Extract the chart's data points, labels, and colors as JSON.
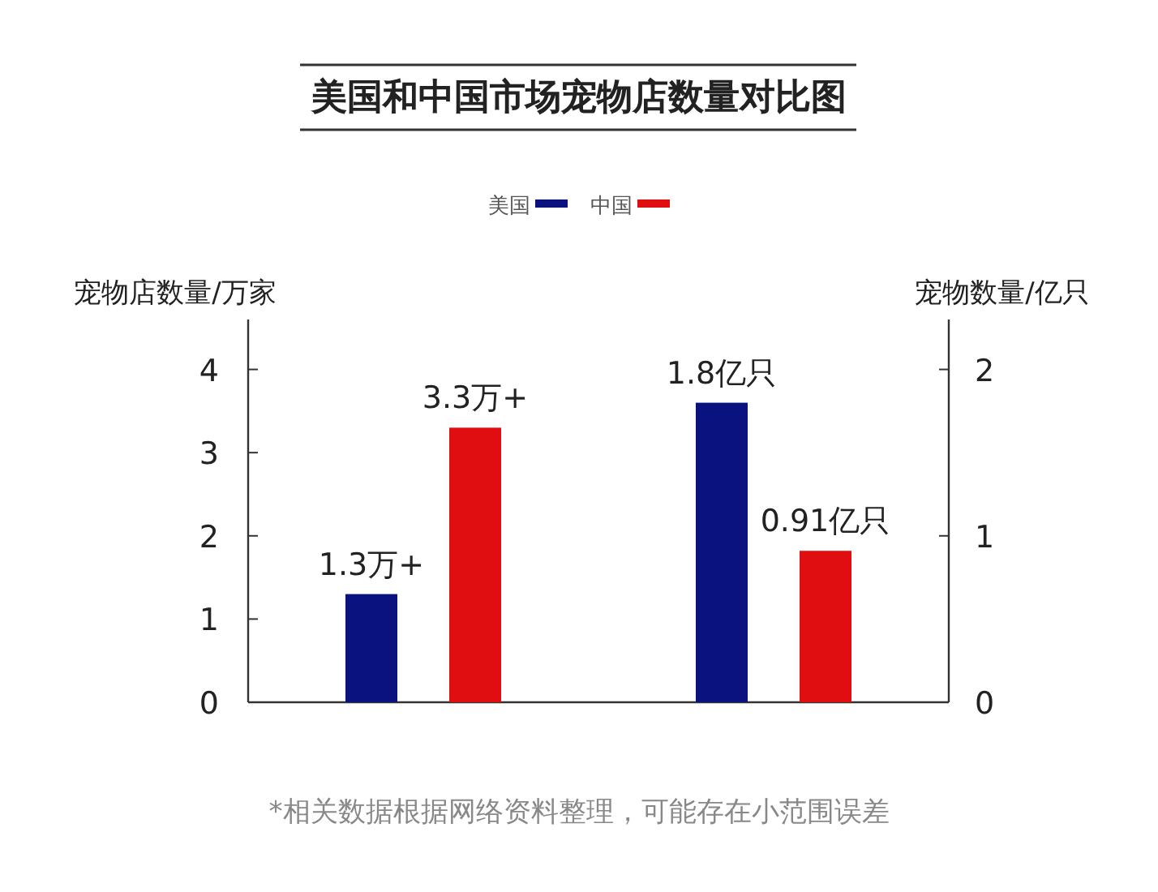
{
  "chart_data": {
    "type": "bar",
    "title": "美国和中国市场宠物店数量对比图",
    "ylabel": "宠物店数量/万家",
    "y2label": "宠物数量/亿只",
    "categories": [
      null,
      null
    ],
    "series": [
      {
        "name": "美国",
        "color": "#0a1280",
        "values": [
          1.3,
          null
        ],
        "value_labels": [
          "1.3万+",
          null
        ]
      },
      {
        "name": "中国",
        "color": "#e00e10",
        "values": [
          3.3,
          null
        ],
        "value_labels": [
          "3.3万+",
          null
        ]
      },
      {
        "color": "#0a1280",
        "values": [
          null,
          1.8
        ],
        "value_labels": [
          null,
          "1.8亿只"
        ],
        "axis": "y2"
      },
      {
        "color": "#e00e10",
        "values": [
          null,
          0.91
        ],
        "value_labels": [
          null,
          "0.91亿只"
        ],
        "axis": "y2"
      }
    ],
    "ylim": [
      0,
      4.6
    ],
    "yticks": [
      0,
      1,
      2,
      3,
      4
    ],
    "y2lim": [
      0,
      2.3
    ],
    "y2ticks": [
      0,
      1,
      2
    ],
    "legend": "top",
    "grid": false,
    "annotations": [
      "*相关数据根据网络资料整理，可能存在小范围误差"
    ]
  }
}
